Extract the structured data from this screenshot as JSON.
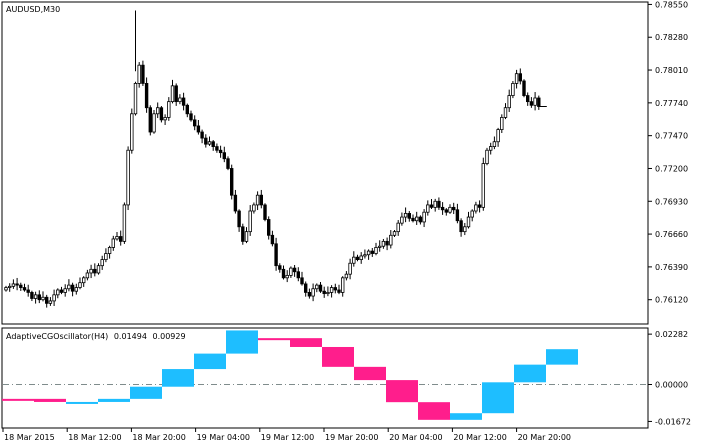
{
  "window": {
    "main_title": "AUDUSD,M30",
    "indicator_title": "AdaptiveCGOscillator(H4)",
    "indicator_values": [
      "0.01494",
      "0.00929"
    ]
  },
  "colors": {
    "background": "#ffffff",
    "axis": "#000000",
    "candle": "#000000",
    "bull_fill": "#ffffff",
    "bear_fill": "#000000",
    "up_color": "#1ebeff",
    "down_color": "#ff1e8c",
    "zero_line": "#7f8c8c"
  },
  "chart_data": [
    {
      "type": "candlestick",
      "title": "AUDUSD,M30",
      "ylim": [
        0.7592,
        0.7857
      ],
      "y_ticks": [
        "0.78550",
        "0.78280",
        "0.78010",
        "0.77740",
        "0.77470",
        "0.77200",
        "0.76930",
        "0.76660",
        "0.76390",
        "0.76120"
      ],
      "x_ticks": [
        "18 Mar 2015",
        "18 Mar 12:00",
        "18 Mar 20:00",
        "19 Mar 04:00",
        "19 Mar 12:00",
        "19 Mar 20:00",
        "20 Mar 04:00",
        "20 Mar 12:00",
        "20 Mar 20:00"
      ],
      "last_price": 0.7771,
      "closes": [
        0.7622,
        0.7623,
        0.7625,
        0.7624,
        0.7622,
        0.762,
        0.7618,
        0.7613,
        0.7616,
        0.7612,
        0.7614,
        0.7609,
        0.7611,
        0.7616,
        0.762,
        0.7618,
        0.7621,
        0.7624,
        0.7619,
        0.7622,
        0.7626,
        0.763,
        0.7634,
        0.7637,
        0.7634,
        0.764,
        0.7645,
        0.765,
        0.7655,
        0.7662,
        0.7664,
        0.766,
        0.769,
        0.7735,
        0.7765,
        0.779,
        0.7805,
        0.779,
        0.777,
        0.775,
        0.7765,
        0.777,
        0.776,
        0.7762,
        0.7775,
        0.7788,
        0.7775,
        0.7778,
        0.7772,
        0.7765,
        0.776,
        0.7755,
        0.775,
        0.7745,
        0.774,
        0.7742,
        0.7738,
        0.7735,
        0.7733,
        0.7728,
        0.772,
        0.7698,
        0.7685,
        0.7672,
        0.766,
        0.7668,
        0.7685,
        0.769,
        0.7698,
        0.769,
        0.7678,
        0.7665,
        0.7658,
        0.764,
        0.7637,
        0.763,
        0.7632,
        0.7638,
        0.7635,
        0.763,
        0.7625,
        0.7618,
        0.7615,
        0.7621,
        0.7624,
        0.7619,
        0.7617,
        0.7618,
        0.7622,
        0.762,
        0.7618,
        0.763,
        0.7633,
        0.7642,
        0.7647,
        0.7645,
        0.7648,
        0.7649,
        0.7652,
        0.765,
        0.7655,
        0.7656,
        0.766,
        0.7657,
        0.7665,
        0.7668,
        0.7675,
        0.768,
        0.7683,
        0.7679,
        0.7677,
        0.768,
        0.7676,
        0.7684,
        0.769,
        0.7688,
        0.7693,
        0.7688,
        0.7686,
        0.7684,
        0.7688,
        0.7686,
        0.7677,
        0.7668,
        0.7672,
        0.768,
        0.7685,
        0.769,
        0.7688,
        0.7724,
        0.7735,
        0.7738,
        0.7742,
        0.7752,
        0.7762,
        0.777,
        0.778,
        0.779,
        0.7798,
        0.7792,
        0.778,
        0.7775,
        0.7772,
        0.7778,
        0.7771
      ]
    },
    {
      "type": "area",
      "title": "AdaptiveCGOscillator(H4)",
      "ylim": [
        -0.0197,
        0.0256
      ],
      "y_ticks": [
        "0.02282",
        "0.00000",
        "-0.01672"
      ],
      "x_ticks": [
        "18 Mar 2015",
        "18 Mar 12:00",
        "18 Mar 20:00",
        "19 Mar 04:00",
        "19 Mar 12:00",
        "19 Mar 20:00",
        "20 Mar 04:00",
        "20 Mar 12:00",
        "20 Mar 20:00"
      ],
      "blocks": [
        {
          "a": -0.0065,
          "b": -0.0065,
          "dir": "down"
        },
        {
          "a": -0.0065,
          "b": -0.0079,
          "dir": "down"
        },
        {
          "a": -0.0079,
          "b": -0.0079,
          "dir": "up"
        },
        {
          "a": -0.0079,
          "b": -0.0065,
          "dir": "up"
        },
        {
          "a": -0.0065,
          "b": -0.001,
          "dir": "up"
        },
        {
          "a": -0.001,
          "b": 0.007,
          "dir": "up"
        },
        {
          "a": 0.007,
          "b": 0.014,
          "dir": "up"
        },
        {
          "a": 0.014,
          "b": 0.0245,
          "dir": "up"
        },
        {
          "a": 0.021,
          "b": 0.021,
          "dir": "down"
        },
        {
          "a": 0.021,
          "b": 0.017,
          "dir": "down"
        },
        {
          "a": 0.017,
          "b": 0.008,
          "dir": "down"
        },
        {
          "a": 0.008,
          "b": 0.002,
          "dir": "down"
        },
        {
          "a": 0.002,
          "b": -0.008,
          "dir": "down"
        },
        {
          "a": -0.008,
          "b": -0.016,
          "dir": "down"
        },
        {
          "a": -0.016,
          "b": -0.013,
          "dir": "up"
        },
        {
          "a": -0.013,
          "b": 0.001,
          "dir": "up"
        },
        {
          "a": 0.001,
          "b": 0.009,
          "dir": "up"
        },
        {
          "a": 0.009,
          "b": 0.016,
          "dir": "up"
        }
      ]
    }
  ]
}
